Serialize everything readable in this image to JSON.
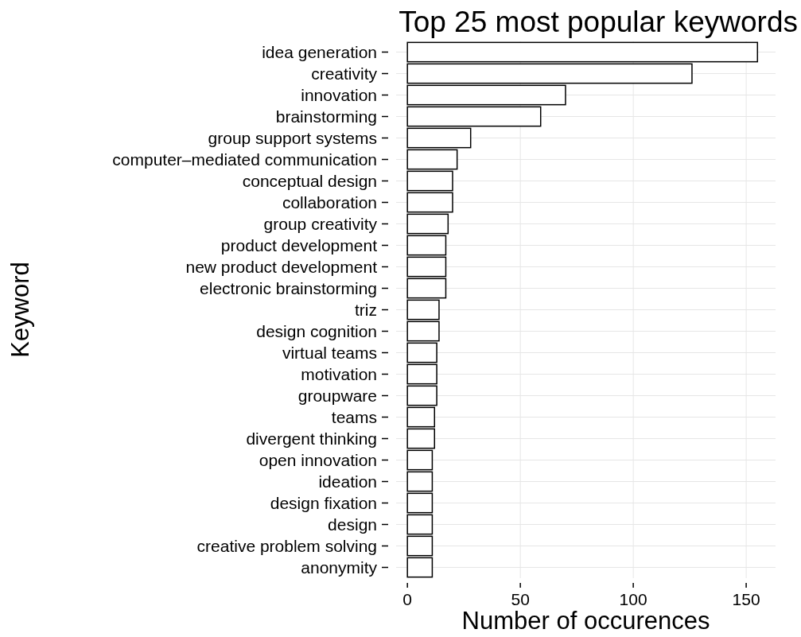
{
  "chart_data": {
    "type": "bar",
    "orientation": "horizontal",
    "title": "Top 25 most popular keywords",
    "xlabel": "Number of occurences",
    "ylabel": "Keyword",
    "categories": [
      "idea generation",
      "creativity",
      "innovation",
      "brainstorming",
      "group support systems",
      "computer–mediated communication",
      "conceptual design",
      "collaboration",
      "group creativity",
      "product development",
      "new product development",
      "electronic brainstorming",
      "triz",
      "design cognition",
      "virtual teams",
      "motivation",
      "groupware",
      "teams",
      "divergent thinking",
      "open innovation",
      "ideation",
      "design fixation",
      "design",
      "creative problem solving",
      "anonymity"
    ],
    "values": [
      155,
      126,
      70,
      59,
      28,
      22,
      20,
      20,
      18,
      17,
      17,
      17,
      14,
      14,
      13,
      13,
      13,
      12,
      12,
      11,
      11,
      11,
      11,
      11,
      11
    ],
    "color": "#ffffff",
    "xlim": [
      -5,
      163
    ],
    "xticks": [
      0,
      50,
      100,
      150
    ],
    "grid": true
  }
}
